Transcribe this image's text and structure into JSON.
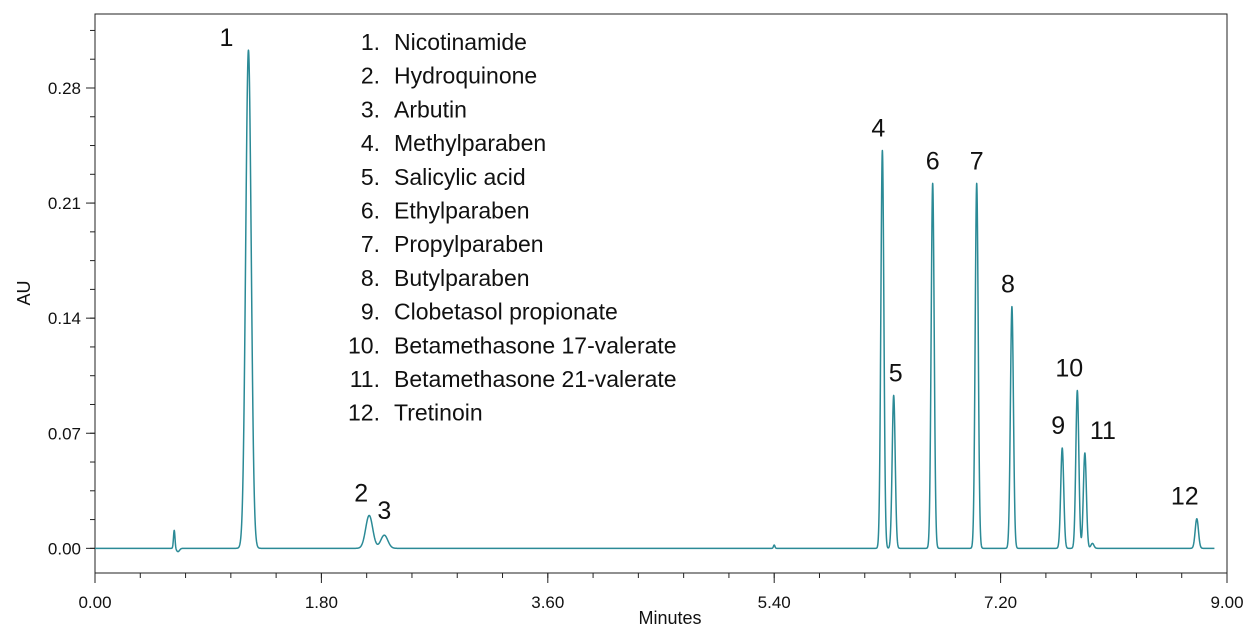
{
  "chart_data": {
    "type": "line",
    "title": "",
    "xlabel": "Minutes",
    "ylabel": "AU",
    "xlim": [
      0,
      9.0
    ],
    "ylim": [
      -0.015,
      0.325
    ],
    "x_ticks": [
      "0.00",
      "1.80",
      "3.60",
      "5.40",
      "7.20",
      "9.00"
    ],
    "x_tick_values": [
      0,
      1.8,
      3.6,
      5.4,
      7.2,
      9.0
    ],
    "y_ticks": [
      "0.00",
      "0.07",
      "0.14",
      "0.21",
      "0.28"
    ],
    "y_tick_values": [
      0,
      0.07,
      0.14,
      0.21,
      0.28
    ],
    "grid": false,
    "series_color": "#2b8a96",
    "baseline": 0.0,
    "artifacts": [
      {
        "x": 0.63,
        "y": 0.011,
        "dip": -0.002
      },
      {
        "x": 5.4,
        "y": 0.002,
        "dip": 0
      }
    ],
    "peaks": [
      {
        "label": "1",
        "x": 1.22,
        "y": 0.303
      },
      {
        "label": "2",
        "x": 2.18,
        "y": 0.02
      },
      {
        "label": "3",
        "x": 2.3,
        "y": 0.008
      },
      {
        "label": "4",
        "x": 6.26,
        "y": 0.242
      },
      {
        "label": "5",
        "x": 6.35,
        "y": 0.093
      },
      {
        "label": "6",
        "x": 6.66,
        "y": 0.222
      },
      {
        "label": "7",
        "x": 7.01,
        "y": 0.222
      },
      {
        "label": "8",
        "x": 7.29,
        "y": 0.147
      },
      {
        "label": "9",
        "x": 7.69,
        "y": 0.061
      },
      {
        "label": "10",
        "x": 7.81,
        "y": 0.096
      },
      {
        "label": "11",
        "x": 7.87,
        "y": 0.058
      },
      {
        "label": "12",
        "x": 8.76,
        "y": 0.018
      }
    ],
    "legend": [
      {
        "num": "1.",
        "name": "Nicotinamide"
      },
      {
        "num": "2.",
        "name": "Hydroquinone"
      },
      {
        "num": "3.",
        "name": "Arbutin"
      },
      {
        "num": "4.",
        "name": "Methylparaben"
      },
      {
        "num": "5.",
        "name": "Salicylic acid"
      },
      {
        "num": "6.",
        "name": "Ethylparaben"
      },
      {
        "num": "7.",
        "name": "Propylparaben"
      },
      {
        "num": "8.",
        "name": "Butylparaben"
      },
      {
        "num": "9.",
        "name": "Clobetasol propionate"
      },
      {
        "num": "10.",
        "name": "Betamethasone 17-valerate"
      },
      {
        "num": "11.",
        "name": "Betamethasone 21-valerate"
      },
      {
        "num": "12.",
        "name": "Tretinoin"
      }
    ],
    "legend_position": "top-center"
  }
}
